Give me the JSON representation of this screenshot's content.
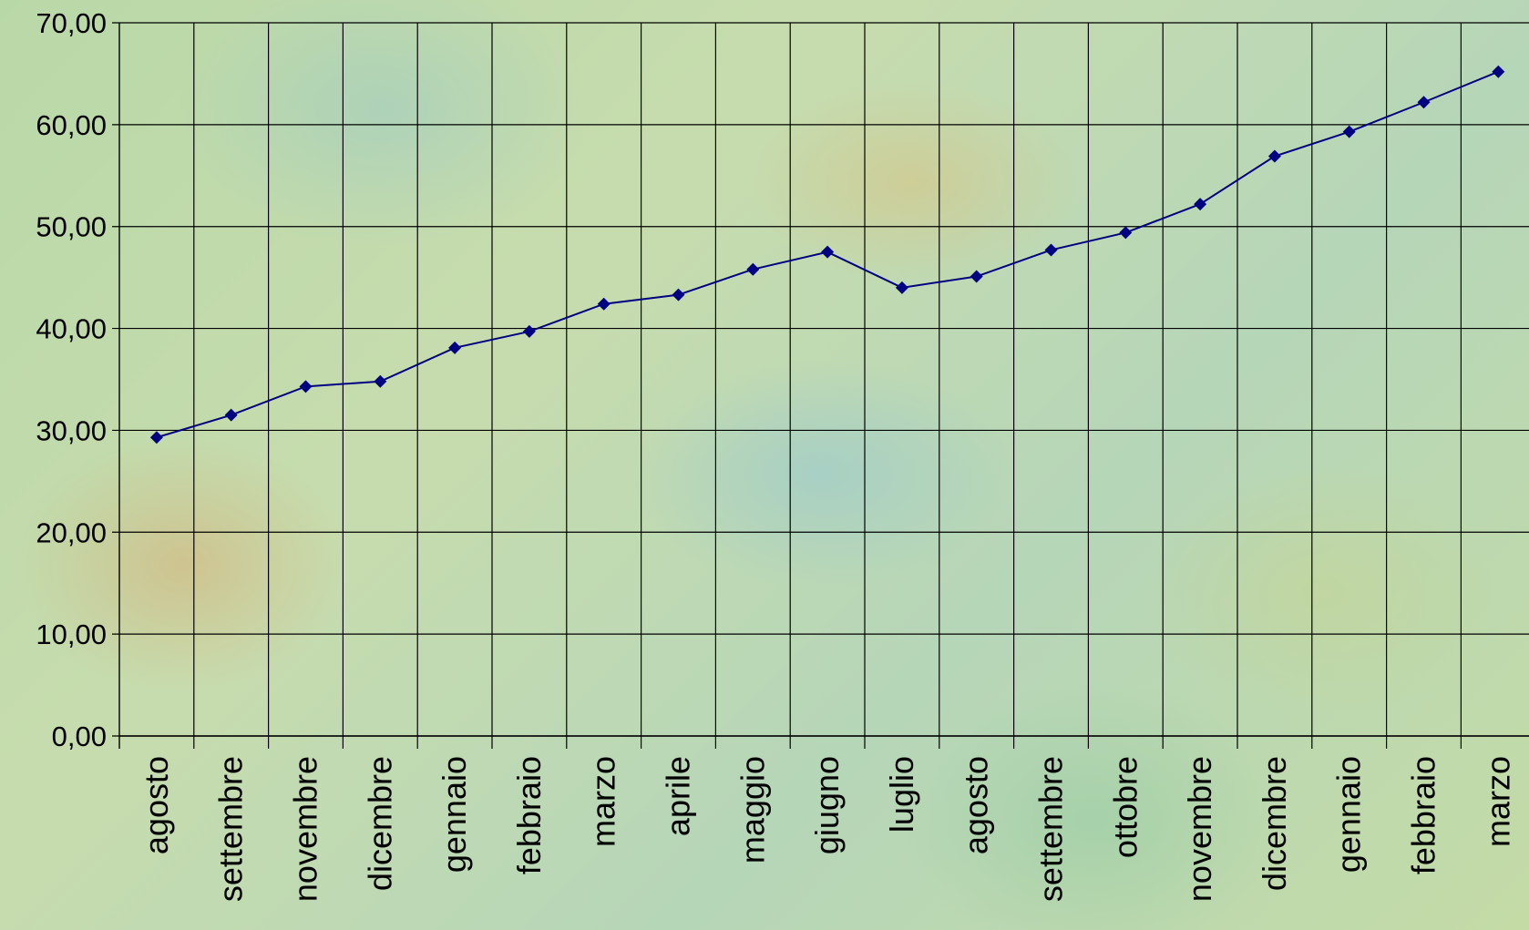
{
  "chart_data": {
    "type": "line",
    "title": "",
    "xlabel": "",
    "ylabel": "",
    "ylim": [
      0,
      70
    ],
    "yticks": [
      "0,00",
      "10,00",
      "20,00",
      "30,00",
      "40,00",
      "50,00",
      "60,00",
      "70,00"
    ],
    "grid": true,
    "categories": [
      "agosto",
      "settembre",
      "novembre",
      "dicembre",
      "gennaio",
      "febbraio",
      "marzo",
      "aprile",
      "maggio",
      "giugno",
      "luglio",
      "agosto",
      "settembre",
      "ottobre",
      "novembre",
      "dicembre",
      "gennaio",
      "febbraio",
      "marzo"
    ],
    "series": [
      {
        "values": [
          29.3,
          31.5,
          34.3,
          34.8,
          38.1,
          39.7,
          42.4,
          43.3,
          45.8,
          47.5,
          44.0,
          45.1,
          47.7,
          49.4,
          52.2,
          56.9,
          59.3,
          62.2,
          65.2
        ],
        "color": "#000080",
        "marker": "diamond"
      }
    ]
  }
}
